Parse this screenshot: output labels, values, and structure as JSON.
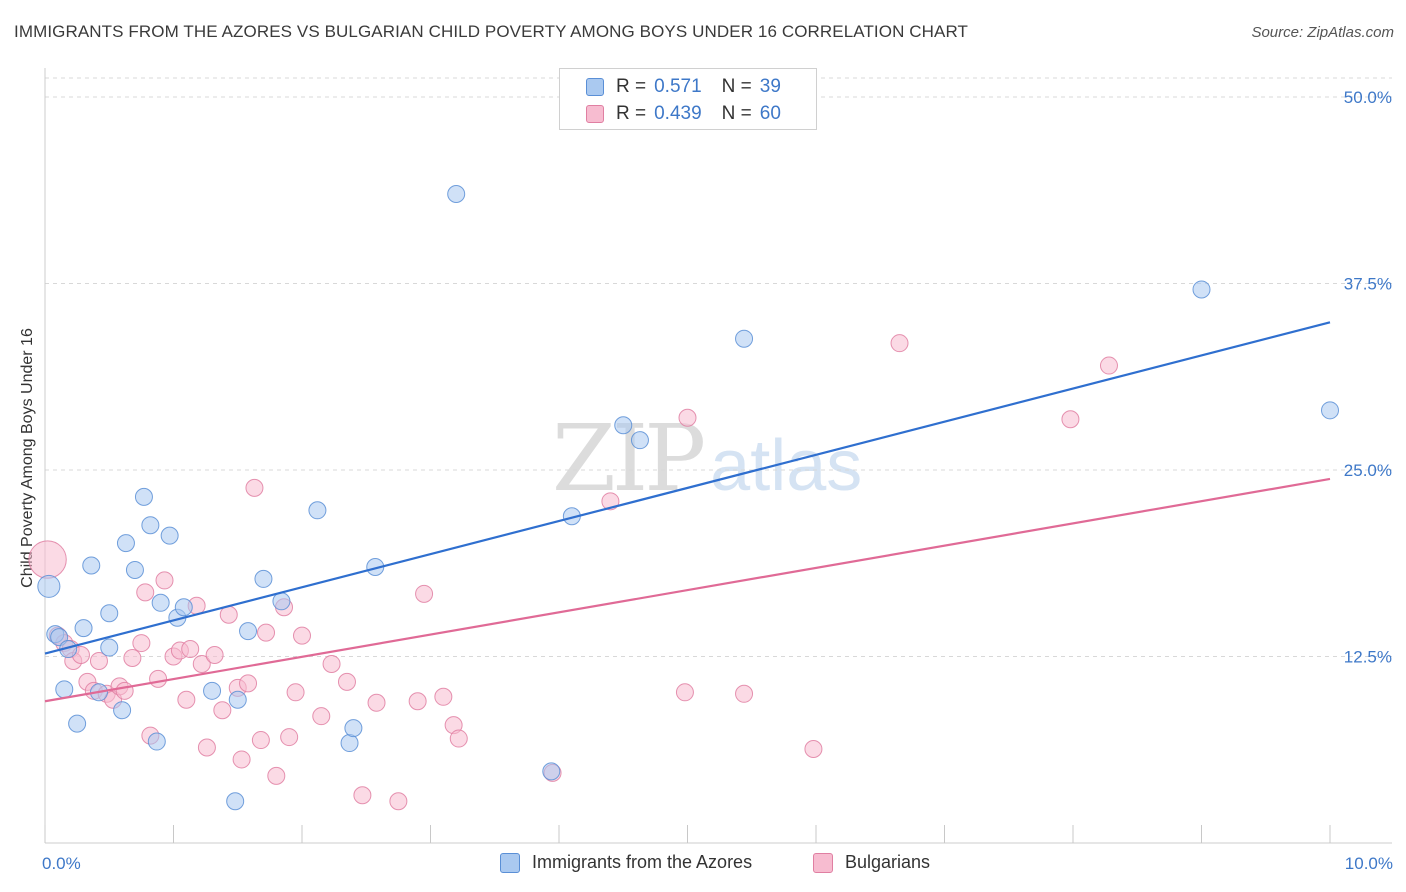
{
  "title": "IMMIGRANTS FROM THE AZORES VS BULGARIAN CHILD POVERTY AMONG BOYS UNDER 16 CORRELATION CHART",
  "source": "Source: ZipAtlas.com",
  "watermark": {
    "zip": "ZIP",
    "atlas": "atlas"
  },
  "colors": {
    "series1_fill": "#aac9f0",
    "series1_stroke": "#5a8fd6",
    "series1_line": "#2f6fcf",
    "series2_fill": "#f7bcd0",
    "series2_stroke": "#e07fa2",
    "series2_line": "#e06a96",
    "axis_label": "#3e78c8",
    "grid": "#d8d8d8"
  },
  "legend": {
    "rows": [
      {
        "r_label": "R =",
        "r_value": "0.571",
        "n_label": "N =",
        "n_value": "39"
      },
      {
        "r_label": "R =",
        "r_value": "0.439",
        "n_label": "N =",
        "n_value": "60"
      }
    ]
  },
  "chart_data": {
    "type": "scatter",
    "title": "IMMIGRANTS FROM THE AZORES VS BULGARIAN CHILD POVERTY AMONG BOYS UNDER 16 CORRELATION CHART",
    "xlabel": "",
    "ylabel": "Child Poverty Among Boys Under 16",
    "xlim": [
      0,
      10
    ],
    "ylim": [
      0,
      52.5
    ],
    "x_tick_labels": [
      "0.0%",
      "10.0%"
    ],
    "y_ticks": [
      12.5,
      25.0,
      37.5,
      50.0
    ],
    "y_tick_labels": [
      "12.5%",
      "25.0%",
      "37.5%",
      "50.0%"
    ],
    "grid": true,
    "series": [
      {
        "name": "Immigrants from the Azores",
        "r": 0.571,
        "n": 39,
        "trend": {
          "x": [
            0,
            10
          ],
          "y": [
            12.7,
            34.9
          ]
        },
        "points": [
          [
            0.03,
            17.2,
            1.3
          ],
          [
            0.08,
            14.0,
            1
          ],
          [
            0.11,
            13.8,
            1
          ],
          [
            0.15,
            10.3,
            1
          ],
          [
            0.18,
            13.0,
            1
          ],
          [
            0.25,
            8.0,
            1
          ],
          [
            0.3,
            14.4,
            1
          ],
          [
            0.36,
            18.6,
            1
          ],
          [
            0.42,
            10.1,
            1
          ],
          [
            0.5,
            15.4,
            1
          ],
          [
            0.5,
            13.1,
            1
          ],
          [
            0.6,
            8.9,
            1
          ],
          [
            0.63,
            20.1,
            1
          ],
          [
            0.7,
            18.3,
            1
          ],
          [
            0.77,
            23.2,
            1
          ],
          [
            0.82,
            21.3,
            1
          ],
          [
            0.87,
            6.8,
            1
          ],
          [
            0.9,
            16.1,
            1
          ],
          [
            0.97,
            20.6,
            1
          ],
          [
            1.03,
            15.1,
            1
          ],
          [
            1.08,
            15.8,
            1
          ],
          [
            1.3,
            10.2,
            1
          ],
          [
            1.5,
            9.6,
            1
          ],
          [
            1.48,
            2.8,
            1
          ],
          [
            1.58,
            14.2,
            1
          ],
          [
            1.7,
            17.7,
            1
          ],
          [
            1.84,
            16.2,
            1
          ],
          [
            2.12,
            22.3,
            1
          ],
          [
            2.37,
            6.7,
            1
          ],
          [
            2.4,
            7.7,
            1
          ],
          [
            2.57,
            18.5,
            1
          ],
          [
            3.2,
            43.5,
            1
          ],
          [
            3.94,
            4.8,
            1
          ],
          [
            4.1,
            21.9,
            1
          ],
          [
            4.5,
            28.0,
            1
          ],
          [
            4.63,
            27.0,
            1
          ],
          [
            5.44,
            33.8,
            1
          ],
          [
            9.0,
            37.1,
            1
          ],
          [
            10.0,
            29.0,
            1
          ]
        ]
      },
      {
        "name": "Bulgarians",
        "r": 0.439,
        "n": 60,
        "trend": {
          "x": [
            0,
            10
          ],
          "y": [
            9.5,
            24.4
          ]
        },
        "points": [
          [
            0.02,
            19.0,
            2.2
          ],
          [
            0.1,
            13.9,
            1
          ],
          [
            0.15,
            13.4,
            1
          ],
          [
            0.2,
            13.0,
            1
          ],
          [
            0.22,
            12.2,
            1
          ],
          [
            0.28,
            12.6,
            1
          ],
          [
            0.33,
            10.8,
            1
          ],
          [
            0.38,
            10.2,
            1
          ],
          [
            0.42,
            12.2,
            1
          ],
          [
            0.48,
            10.0,
            1
          ],
          [
            0.53,
            9.6,
            1
          ],
          [
            0.58,
            10.5,
            1
          ],
          [
            0.62,
            10.2,
            1
          ],
          [
            0.68,
            12.4,
            1
          ],
          [
            0.75,
            13.4,
            1
          ],
          [
            0.78,
            16.8,
            1
          ],
          [
            0.82,
            7.2,
            1
          ],
          [
            0.88,
            11.0,
            1
          ],
          [
            0.93,
            17.6,
            1
          ],
          [
            1.0,
            12.5,
            1
          ],
          [
            1.05,
            12.9,
            1
          ],
          [
            1.1,
            9.6,
            1
          ],
          [
            1.13,
            13.0,
            1
          ],
          [
            1.18,
            15.9,
            1
          ],
          [
            1.22,
            12.0,
            1
          ],
          [
            1.26,
            6.4,
            1
          ],
          [
            1.32,
            12.6,
            1
          ],
          [
            1.38,
            8.9,
            1
          ],
          [
            1.43,
            15.3,
            1
          ],
          [
            1.5,
            10.4,
            1
          ],
          [
            1.53,
            5.6,
            1
          ],
          [
            1.58,
            10.7,
            1
          ],
          [
            1.63,
            23.8,
            1
          ],
          [
            1.68,
            6.9,
            1
          ],
          [
            1.72,
            14.1,
            1
          ],
          [
            1.8,
            4.5,
            1
          ],
          [
            1.86,
            15.8,
            1
          ],
          [
            1.9,
            7.1,
            1
          ],
          [
            1.95,
            10.1,
            1
          ],
          [
            2.0,
            13.9,
            1
          ],
          [
            2.15,
            8.5,
            1
          ],
          [
            2.23,
            12.0,
            1
          ],
          [
            2.35,
            10.8,
            1
          ],
          [
            2.47,
            3.2,
            1
          ],
          [
            2.58,
            9.4,
            1
          ],
          [
            2.75,
            2.8,
            1
          ],
          [
            2.9,
            9.5,
            1
          ],
          [
            2.95,
            16.7,
            1
          ],
          [
            3.1,
            9.8,
            1
          ],
          [
            3.18,
            7.9,
            1
          ],
          [
            3.22,
            7.0,
            1
          ],
          [
            3.95,
            4.7,
            1
          ],
          [
            4.4,
            22.9,
            1
          ],
          [
            4.98,
            10.1,
            1
          ],
          [
            5.0,
            28.5,
            1
          ],
          [
            5.44,
            10.0,
            1
          ],
          [
            5.98,
            6.3,
            1
          ],
          [
            6.65,
            33.5,
            1
          ],
          [
            7.98,
            28.4,
            1
          ],
          [
            8.28,
            32.0,
            1
          ]
        ]
      }
    ]
  },
  "bottom_legend": [
    {
      "label": "Immigrants from the Azores"
    },
    {
      "label": "Bulgarians"
    }
  ]
}
